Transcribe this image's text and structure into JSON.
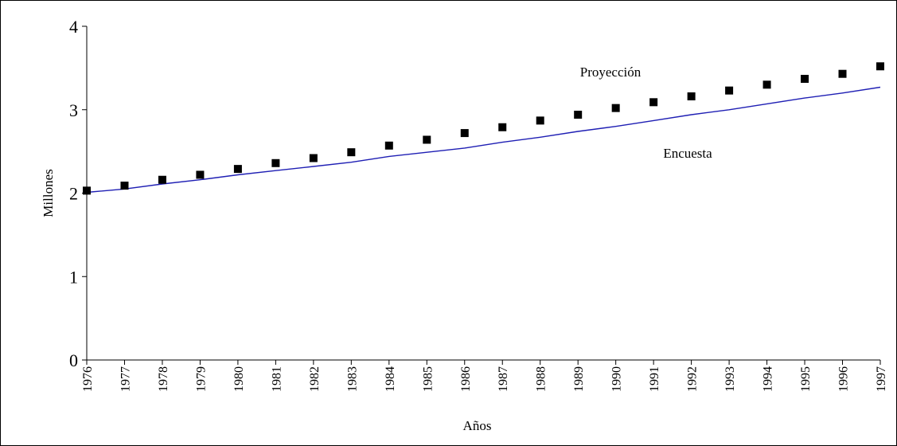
{
  "chart_data": {
    "type": "line",
    "title": "",
    "xlabel": "Años",
    "ylabel": "Millones",
    "x": [
      1976,
      1977,
      1978,
      1979,
      1980,
      1981,
      1982,
      1983,
      1984,
      1985,
      1986,
      1987,
      1988,
      1989,
      1990,
      1991,
      1992,
      1993,
      1994,
      1995,
      1996,
      1997
    ],
    "xlim": [
      1976,
      1997
    ],
    "ylim": [
      0,
      4
    ],
    "yticks": [
      0,
      1,
      2,
      3,
      4
    ],
    "grid": false,
    "series": [
      {
        "name": "Proyección",
        "style": "markers",
        "marker": "square",
        "color": "#000000",
        "values": [
          2.03,
          2.09,
          2.16,
          2.22,
          2.29,
          2.36,
          2.42,
          2.49,
          2.57,
          2.64,
          2.72,
          2.79,
          2.87,
          2.94,
          3.02,
          3.09,
          3.16,
          3.23,
          3.3,
          3.37,
          3.43,
          3.52
        ]
      },
      {
        "name": "Encuesta",
        "style": "line",
        "color": "#1f1fb4",
        "values": [
          2.01,
          2.05,
          2.11,
          2.16,
          2.22,
          2.27,
          2.32,
          2.37,
          2.44,
          2.49,
          2.54,
          2.61,
          2.67,
          2.74,
          2.8,
          2.87,
          2.94,
          3.0,
          3.07,
          3.14,
          3.2,
          3.27
        ]
      }
    ]
  }
}
